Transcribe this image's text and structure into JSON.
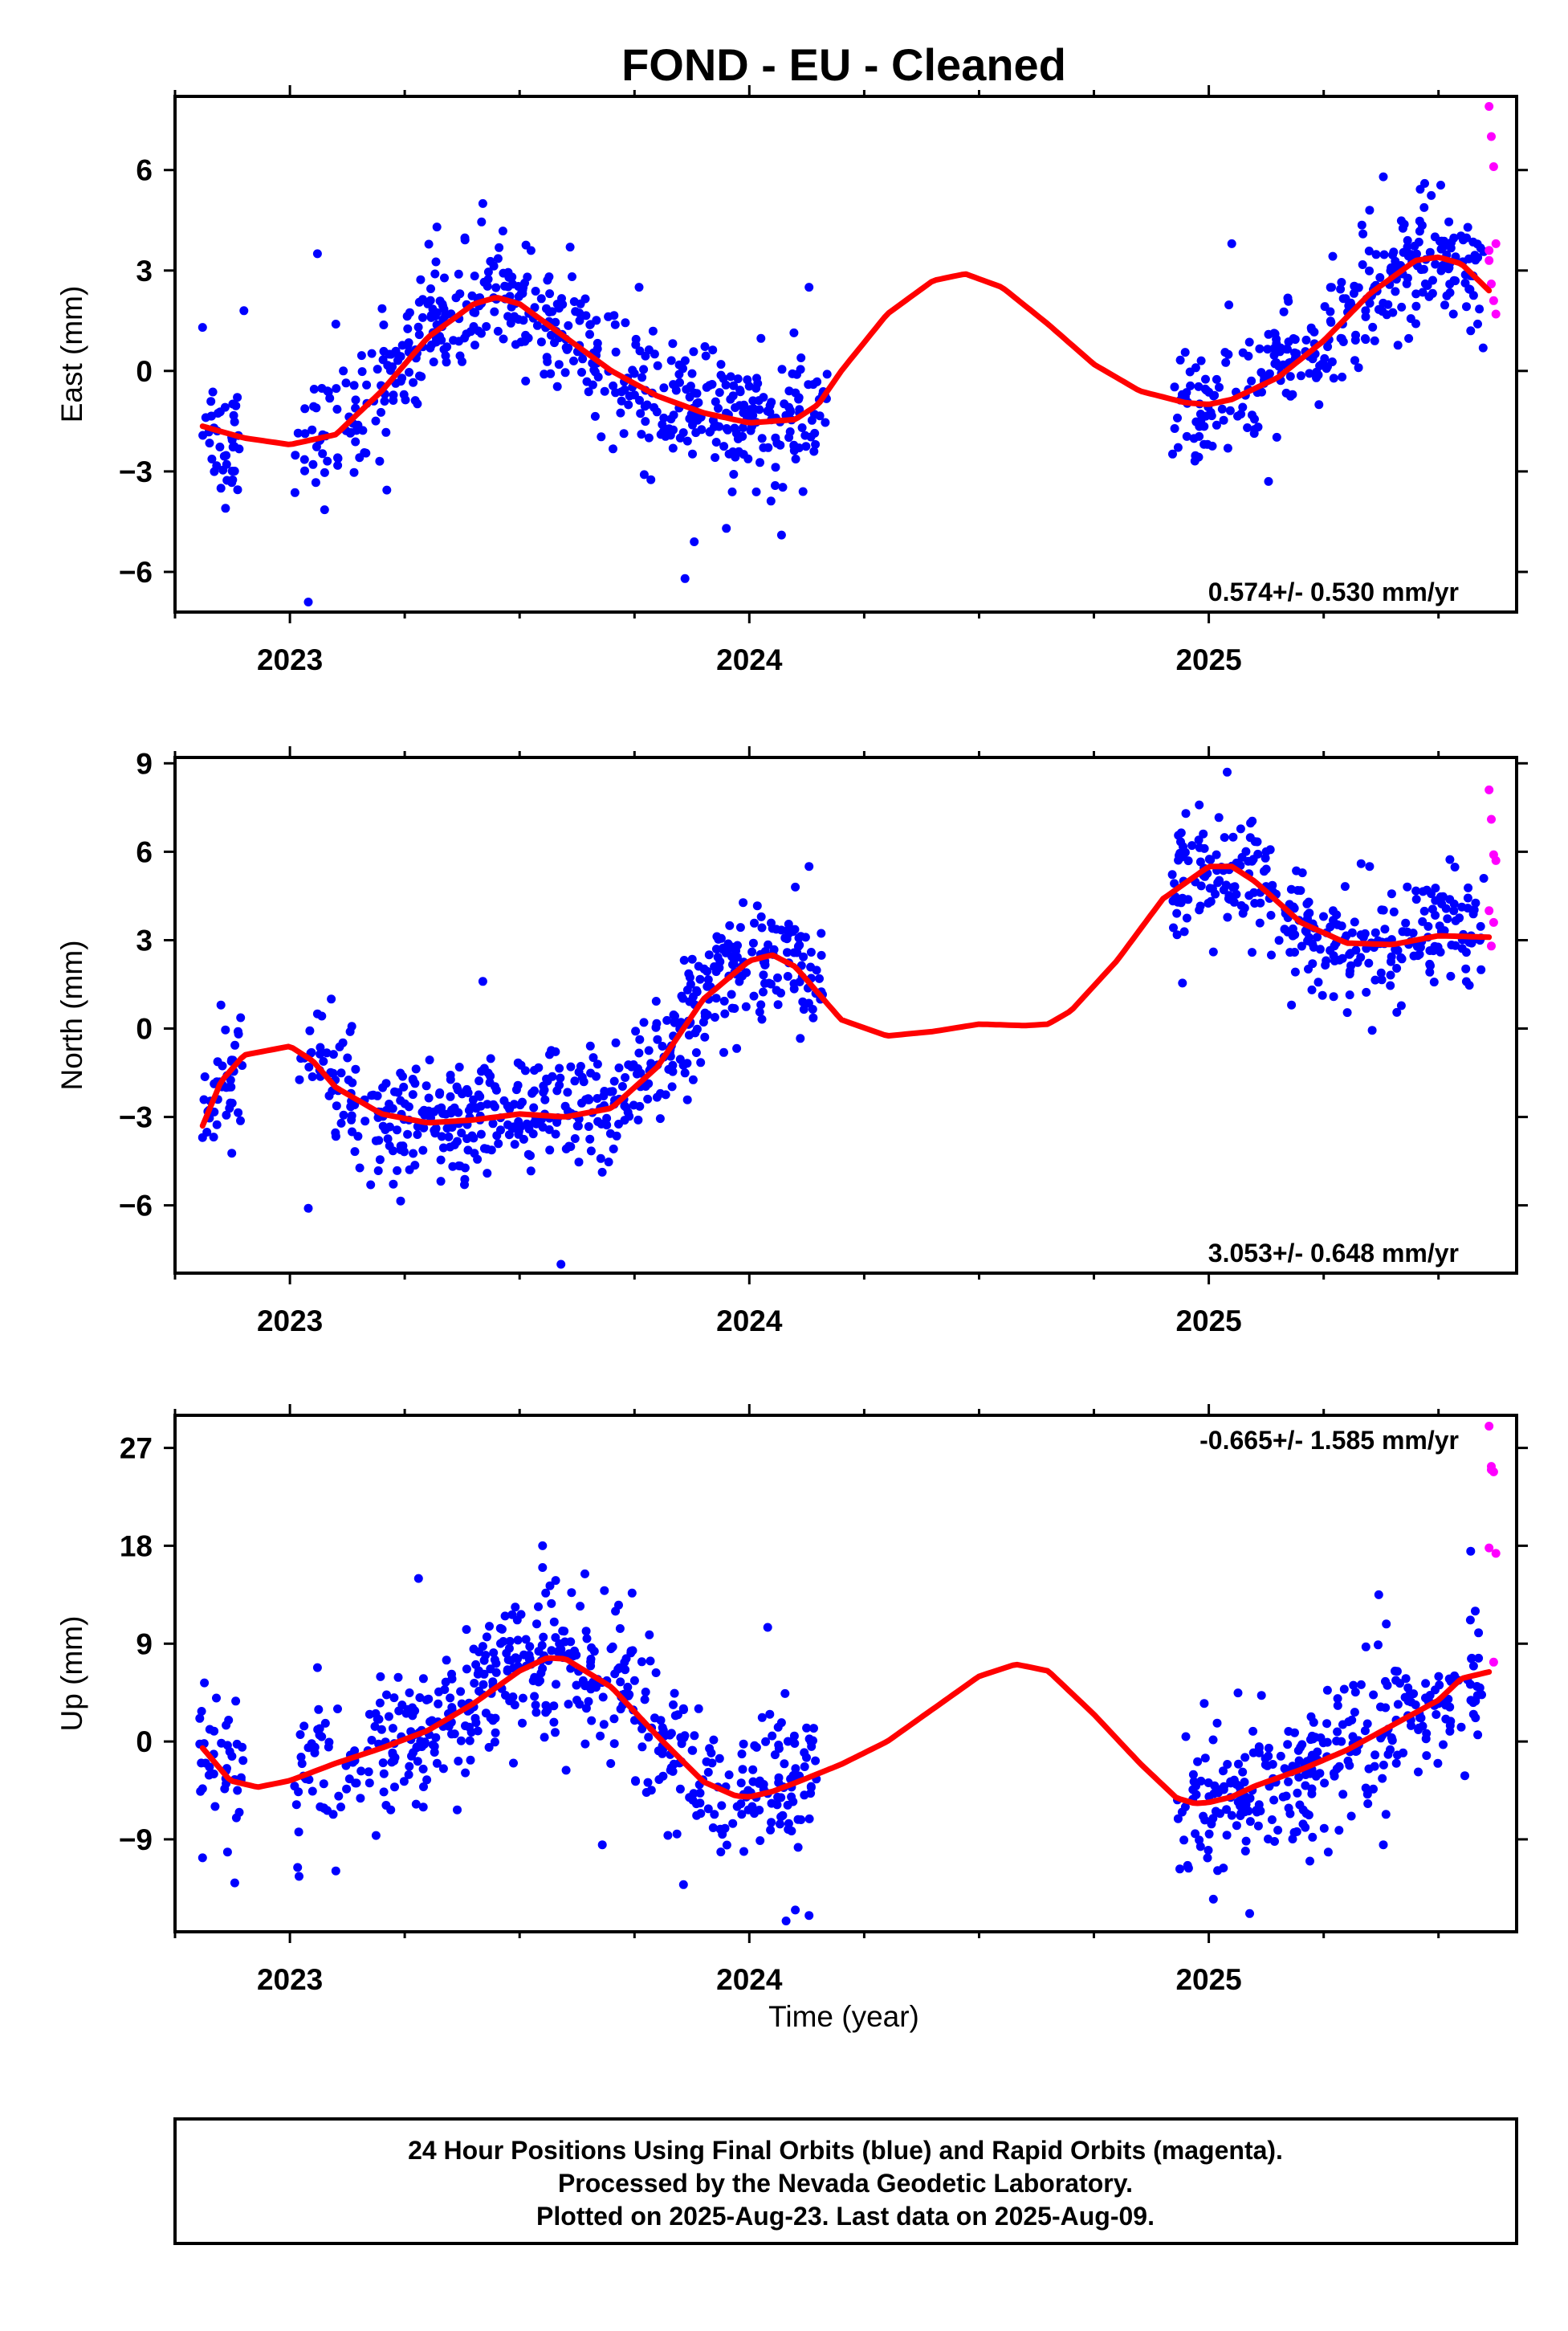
{
  "title": "FOND  - EU - Cleaned",
  "xlabel": "Time (year)",
  "footer": [
    "24 Hour Positions Using Final Orbits (blue) and Rapid Orbits (magenta).",
    "Processed by the Nevada Geodetic Laboratory.",
    "Plotted on 2025-Aug-23. Last data on 2025-Aug-09."
  ],
  "colors": {
    "final": "#0000ff",
    "rapid": "#ff00ff",
    "model": "#ff0000",
    "frame": "#000000"
  },
  "chart_data": [
    {
      "type": "scatter",
      "ylabel": "East (mm)",
      "rate_label": "0.574+/- 0.530 mm/yr",
      "rate_position": "bottom-right",
      "xlim": [
        2022.75,
        2025.67
      ],
      "ylim": [
        -7.2,
        8.2
      ],
      "xticks": [
        2023,
        2024,
        2025
      ],
      "xtick_labels": [
        "2023",
        "2024",
        "2025"
      ],
      "yticks": [
        -6,
        -3,
        0,
        3,
        6
      ],
      "ytick_labels": [
        "−6",
        "−3",
        "0",
        "3",
        "6"
      ],
      "grid": false,
      "series": [
        {
          "kind": "points",
          "color_key": "final",
          "sd": 0.9,
          "clipped": true,
          "segments": [
            {
              "x": [
                2022.81,
                2022.89
              ],
              "n": 38,
              "extra": [
                [
                  2022.86,
                  -4.1
                ],
                [
                  2022.85,
                  -3.5
                ],
                [
                  2022.9,
                  1.8
                ],
                [
                  2022.81,
                  1.3
                ]
              ]
            },
            {
              "x": [
                2023.01,
                2023.2
              ],
              "n": 60,
              "extra": [
                [
                  2023.04,
                  -6.9
                ],
                [
                  2023.06,
                  3.5
                ],
                [
                  2023.1,
                  1.4
                ]
              ]
            },
            {
              "x": [
                2023.2,
                2024.17
              ],
              "n": 460,
              "extra": [
                [
                  2023.42,
                  5.0
                ],
                [
                  2023.32,
                  4.3
                ],
                [
                  2023.86,
                  -6.2
                ],
                [
                  2023.88,
                  -5.1
                ],
                [
                  2023.95,
                  -4.7
                ],
                [
                  2024.07,
                  -4.9
                ],
                [
                  2024.13,
                  2.5
                ],
                [
                  2023.76,
                  2.5
                ],
                [
                  2023.61,
                  3.7
                ]
              ]
            },
            {
              "x": [
                2024.92,
                2025.6
              ],
              "n": 300,
              "extra": [
                [
                  2025.05,
                  3.8
                ],
                [
                  2025.13,
                  -3.3
                ],
                [
                  2025.38,
                  5.8
                ],
                [
                  2025.47,
                  5.6
                ],
                [
                  2025.35,
                  4.8
                ],
                [
                  2025.57,
                  1.2
                ]
              ]
            }
          ]
        },
        {
          "kind": "points",
          "color_key": "rapid",
          "x": [
            2025.61,
            2025.615,
            2025.62,
            2025.625,
            2025.61,
            2025.615,
            2025.62,
            2025.625,
            2025.61
          ],
          "y": [
            7.9,
            7.0,
            6.1,
            3.8,
            3.3,
            2.6,
            2.1,
            1.7,
            3.6
          ]
        },
        {
          "kind": "line",
          "color_key": "model",
          "name": "model fit",
          "x": [
            2022.81,
            2022.9,
            2023.0,
            2023.1,
            2023.2,
            2023.3,
            2023.4,
            2023.45,
            2023.5,
            2023.6,
            2023.7,
            2023.8,
            2023.9,
            2024.0,
            2024.1,
            2024.15,
            2024.2,
            2024.3,
            2024.4,
            2024.47,
            2024.55,
            2024.65,
            2024.75,
            2024.85,
            2024.95,
            2025.0,
            2025.05,
            2025.15,
            2025.25,
            2025.35,
            2025.45,
            2025.5,
            2025.55,
            2025.61
          ],
          "y": [
            -1.65,
            -2.0,
            -2.2,
            -1.9,
            -0.6,
            1.0,
            2.0,
            2.2,
            2.0,
            1.0,
            0.0,
            -0.75,
            -1.25,
            -1.55,
            -1.45,
            -1.0,
            0.0,
            1.7,
            2.7,
            2.9,
            2.5,
            1.4,
            0.2,
            -0.6,
            -0.95,
            -1.0,
            -0.85,
            -0.2,
            0.9,
            2.3,
            3.3,
            3.4,
            3.2,
            2.4
          ]
        }
      ]
    },
    {
      "type": "scatter",
      "ylabel": "North (mm)",
      "rate_label": "3.053+/- 0.648 mm/yr",
      "rate_position": "bottom-right",
      "xlim": [
        2022.75,
        2025.67
      ],
      "ylim": [
        -8.3,
        9.2
      ],
      "xticks": [
        2023,
        2024,
        2025
      ],
      "xtick_labels": [
        "2023",
        "2024",
        "2025"
      ],
      "yticks": [
        -6,
        -3,
        0,
        3,
        6,
        9
      ],
      "ytick_labels": [
        "−6",
        "−3",
        "0",
        "3",
        "6",
        "9"
      ],
      "grid": false,
      "series": [
        {
          "kind": "points",
          "color_key": "final",
          "sd": 1.0,
          "clipped": true,
          "segments": [
            {
              "x": [
                2022.81,
                2022.9
              ],
              "n": 40,
              "extra": [
                [
                  2022.81,
                  -3.7
                ],
                [
                  2022.85,
                  0.8
                ]
              ]
            },
            {
              "x": [
                2023.02,
                2023.2
              ],
              "n": 60,
              "extra": [
                [
                  2023.04,
                  -6.1
                ],
                [
                  2023.09,
                  1.0
                ],
                [
                  2023.06,
                  0.5
                ]
              ]
            },
            {
              "x": [
                2023.2,
                2024.16
              ],
              "n": 470,
              "extra": [
                [
                  2023.42,
                  1.6
                ],
                [
                  2023.59,
                  -8.0
                ],
                [
                  2023.38,
                  -5.3
                ],
                [
                  2024.13,
                  5.5
                ],
                [
                  2024.1,
                  4.8
                ]
              ]
            },
            {
              "x": [
                2024.92,
                2025.6
              ],
              "n": 300,
              "extra": [
                [
                  2025.04,
                  8.7
                ],
                [
                  2024.95,
                  7.3
                ],
                [
                  2025.18,
                  0.8
                ],
                [
                  2025.35,
                  5.5
                ],
                [
                  2025.01,
                  2.6
                ]
              ]
            }
          ]
        },
        {
          "kind": "points",
          "color_key": "rapid",
          "x": [
            2025.61,
            2025.615,
            2025.62,
            2025.625,
            2025.61,
            2025.62,
            2025.615
          ],
          "y": [
            8.1,
            7.1,
            5.9,
            5.7,
            4.0,
            3.6,
            2.8
          ]
        },
        {
          "kind": "line",
          "color_key": "model",
          "name": "model fit",
          "x": [
            2022.81,
            2022.85,
            2022.9,
            2023.0,
            2023.05,
            2023.1,
            2023.2,
            2023.3,
            2023.4,
            2023.5,
            2023.6,
            2023.7,
            2023.8,
            2023.9,
            2024.0,
            2024.05,
            2024.1,
            2024.15,
            2024.2,
            2024.3,
            2024.4,
            2024.5,
            2024.6,
            2024.65,
            2024.7,
            2024.8,
            2024.9,
            2025.0,
            2025.05,
            2025.1,
            2025.2,
            2025.3,
            2025.4,
            2025.5,
            2025.61
          ],
          "y": [
            -3.3,
            -1.8,
            -0.9,
            -0.6,
            -1.1,
            -2.0,
            -2.9,
            -3.2,
            -3.1,
            -2.9,
            -3.0,
            -2.7,
            -1.3,
            1.0,
            2.3,
            2.5,
            2.1,
            1.2,
            0.3,
            -0.25,
            -0.1,
            0.15,
            0.1,
            0.15,
            0.6,
            2.3,
            4.4,
            5.5,
            5.5,
            5.0,
            3.6,
            2.9,
            2.85,
            3.15,
            3.1
          ]
        }
      ]
    },
    {
      "type": "scatter",
      "ylabel": "Up (mm)",
      "rate_label": "-0.665+/- 1.585 mm/yr",
      "rate_position": "top-right",
      "xlim": [
        2022.75,
        2025.67
      ],
      "ylim": [
        -17.5,
        30.0
      ],
      "xticks": [
        2023,
        2024,
        2025
      ],
      "xtick_labels": [
        "2023",
        "2024",
        "2025"
      ],
      "yticks": [
        -9,
        0,
        9,
        18,
        27
      ],
      "ytick_labels": [
        "−9",
        "0",
        "9",
        "18",
        "27"
      ],
      "grid": false,
      "series": [
        {
          "kind": "points",
          "color_key": "final",
          "sd": 3.4,
          "clipped": true,
          "segments": [
            {
              "x": [
                2022.8,
                2022.9
              ],
              "n": 38,
              "extra": [
                [
                  2022.81,
                  -10.7
                ],
                [
                  2022.88,
                  -13.0
                ],
                [
                  2022.84,
                  4.0
                ]
              ]
            },
            {
              "x": [
                2023.01,
                2023.2
              ],
              "n": 60,
              "extra": [
                [
                  2023.02,
                  -12.4
                ],
                [
                  2023.1,
                  -11.9
                ],
                [
                  2023.06,
                  6.8
                ]
              ]
            },
            {
              "x": [
                2023.2,
                2024.15
              ],
              "n": 460,
              "extra": [
                [
                  2023.28,
                  15.0
                ],
                [
                  2023.55,
                  18.0
                ],
                [
                  2023.55,
                  16.0
                ],
                [
                  2023.68,
                  -9.5
                ],
                [
                  2024.04,
                  10.5
                ],
                [
                  2024.1,
                  -15.5
                ],
                [
                  2024.13,
                  -16.0
                ],
                [
                  2024.08,
                  -16.5
                ],
                [
                  2023.4,
                  8.5
                ]
              ]
            },
            {
              "x": [
                2024.93,
                2025.6
              ],
              "n": 300,
              "extra": [
                [
                  2024.99,
                  3.5
                ],
                [
                  2025.01,
                  -14.5
                ],
                [
                  2025.22,
                  -11.0
                ],
                [
                  2025.37,
                  13.5
                ],
                [
                  2025.57,
                  17.5
                ],
                [
                  2025.38,
                  -9.5
                ],
                [
                  2025.58,
                  12.0
                ]
              ]
            }
          ]
        },
        {
          "kind": "points",
          "color_key": "rapid",
          "x": [
            2025.61,
            2025.615,
            2025.62,
            2025.61,
            2025.625,
            2025.62,
            2025.615
          ],
          "y": [
            29.0,
            25.3,
            24.8,
            17.8,
            17.3,
            7.3,
            25.0
          ]
        },
        {
          "kind": "line",
          "color_key": "model",
          "name": "model fit",
          "x": [
            2022.81,
            2022.87,
            2022.93,
            2023.0,
            2023.1,
            2023.2,
            2023.3,
            2023.4,
            2023.5,
            2023.56,
            2023.6,
            2023.7,
            2023.8,
            2023.9,
            2023.97,
            2024.0,
            2024.05,
            2024.1,
            2024.2,
            2024.3,
            2024.4,
            2024.5,
            2024.58,
            2024.65,
            2024.75,
            2024.85,
            2024.93,
            2024.97,
            2025.0,
            2025.05,
            2025.1,
            2025.2,
            2025.3,
            2025.4,
            2025.5,
            2025.55,
            2025.61
          ],
          "y": [
            -0.6,
            -3.6,
            -4.2,
            -3.6,
            -2.0,
            -0.6,
            1.0,
            3.5,
            6.5,
            7.7,
            7.6,
            5.0,
            0.5,
            -3.7,
            -5.0,
            -5.1,
            -4.6,
            -3.8,
            -2.1,
            0.0,
            3.0,
            6.0,
            7.1,
            6.5,
            2.5,
            -2.0,
            -5.2,
            -5.7,
            -5.6,
            -5.1,
            -4.1,
            -2.6,
            -0.8,
            1.5,
            3.8,
            5.8,
            6.4
          ]
        }
      ]
    }
  ]
}
